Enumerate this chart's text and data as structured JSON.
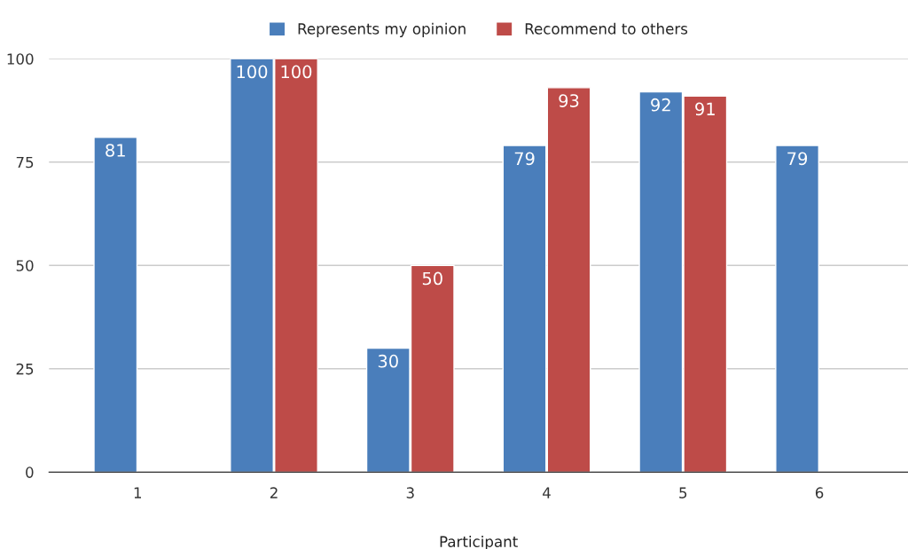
{
  "chart_data": {
    "type": "bar",
    "xlabel": "Participant",
    "categories": [
      "1",
      "2",
      "3",
      "4",
      "5",
      "6"
    ],
    "series": [
      {
        "name": "Represents my opinion",
        "color": "#4a7ebb",
        "values": [
          81,
          100,
          30,
          79,
          92,
          79
        ]
      },
      {
        "name": "Recommend to others",
        "color": "#be4b48",
        "values": [
          null,
          100,
          50,
          93,
          91,
          null
        ]
      }
    ],
    "ylim": [
      0,
      100
    ],
    "yticks": [
      0,
      25,
      50,
      75,
      100
    ],
    "grid": "y",
    "legend": "top",
    "data_labels": true
  }
}
